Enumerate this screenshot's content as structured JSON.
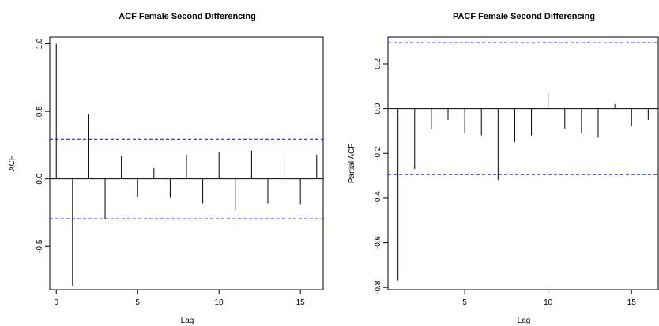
{
  "chart_data": [
    {
      "type": "bar",
      "title": "ACF Female Second Differencing",
      "xlabel": "Lag",
      "ylabel": "ACF",
      "xlim": [
        -0.4,
        16.4
      ],
      "ylim": [
        -0.82,
        1.05
      ],
      "x_ticks": [
        0,
        5,
        10,
        15
      ],
      "x_tick_labels": [
        "0",
        "5",
        "10",
        "15"
      ],
      "y_ticks": [
        -0.5,
        0.0,
        0.5,
        1.0
      ],
      "y_tick_labels": [
        "-0.5",
        "0.0",
        "0.5",
        "1.0"
      ],
      "lags": [
        0,
        1,
        2,
        3,
        4,
        5,
        6,
        7,
        8,
        9,
        10,
        11,
        12,
        13,
        14,
        15,
        16
      ],
      "values": [
        1.0,
        -0.79,
        0.48,
        -0.3,
        0.17,
        -0.13,
        0.08,
        -0.14,
        0.18,
        -0.18,
        0.2,
        -0.23,
        0.21,
        -0.18,
        0.17,
        -0.19,
        0.18
      ],
      "conf_limit": 0.295,
      "colors": {
        "spike": "#000000",
        "conf": "#0000ff",
        "zero": "#000000"
      }
    },
    {
      "type": "bar",
      "title": "PACF Female Second Differencing",
      "xlabel": "Lag",
      "ylabel": "Partial ACF",
      "xlim": [
        0.4,
        16.6
      ],
      "ylim": [
        -0.81,
        0.32
      ],
      "x_ticks": [
        5,
        10,
        15
      ],
      "x_tick_labels": [
        "5",
        "10",
        "15"
      ],
      "y_ticks": [
        -0.8,
        -0.6,
        -0.4,
        -0.2,
        0.0,
        0.2
      ],
      "y_tick_labels": [
        "-0.8",
        "-0.6",
        "-0.4",
        "-0.2",
        "0.0",
        "0.2"
      ],
      "lags": [
        1,
        2,
        3,
        4,
        5,
        6,
        7,
        8,
        9,
        10,
        11,
        12,
        13,
        14,
        15,
        16
      ],
      "values": [
        -0.77,
        -0.27,
        -0.09,
        -0.05,
        -0.11,
        -0.12,
        -0.32,
        -0.15,
        -0.12,
        0.07,
        -0.09,
        -0.11,
        -0.13,
        0.02,
        -0.08,
        -0.05
      ],
      "conf_limit": 0.295,
      "colors": {
        "spike": "#000000",
        "conf": "#0000ff",
        "zero": "#000000"
      }
    }
  ]
}
